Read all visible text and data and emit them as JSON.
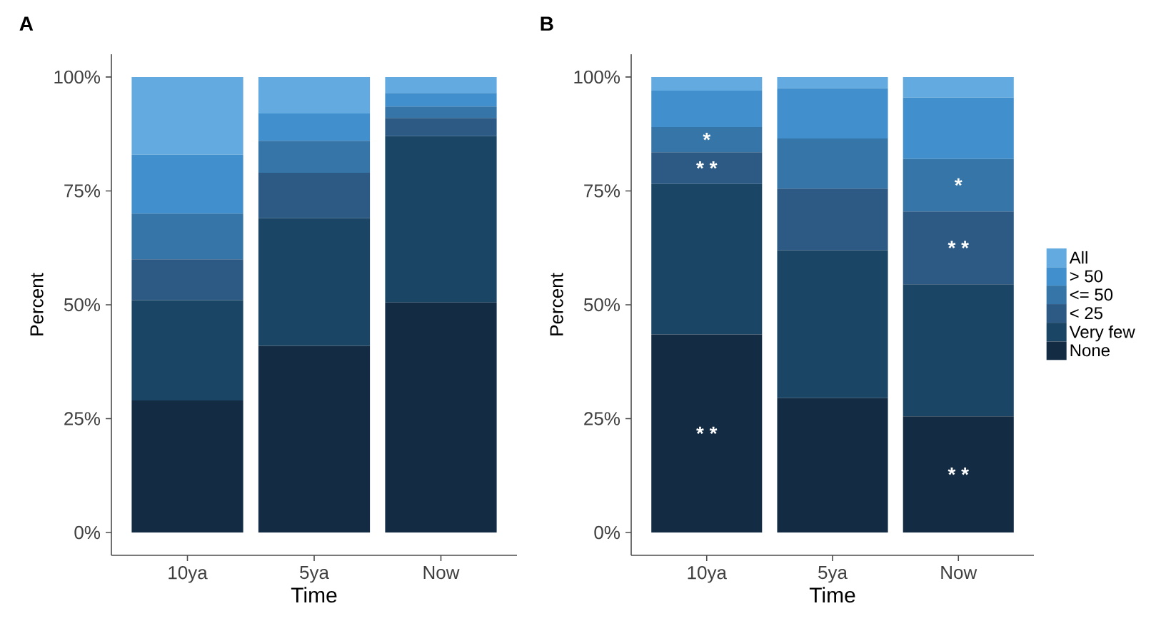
{
  "chart_data": [
    {
      "type": "bar",
      "title": "A",
      "xlabel": "Time",
      "ylabel": "Percent",
      "stacked": true,
      "categories": [
        "10ya",
        "5ya",
        "Now"
      ],
      "ylim": [
        -5,
        105
      ],
      "yticks": [
        {
          "value": 0,
          "label": "0%"
        },
        {
          "value": 25,
          "label": "25%"
        },
        {
          "value": 50,
          "label": "50%"
        },
        {
          "value": 75,
          "label": "75%"
        },
        {
          "value": 100,
          "label": "100%"
        }
      ],
      "grid": false,
      "legend": false,
      "series": [
        {
          "color": "#132b43",
          "values": [
            29,
            41,
            50.5
          ]
        },
        {
          "color": "#1b4565",
          "values": [
            22,
            28,
            36.5
          ]
        },
        {
          "color": "#2d5a85",
          "values": [
            9,
            10,
            4
          ]
        },
        {
          "color": "#3575a8",
          "values": [
            10,
            7,
            2.5
          ]
        },
        {
          "color": "#4190cd",
          "values": [
            13,
            6,
            3
          ]
        },
        {
          "color": "#62aadf",
          "values": [
            17,
            8,
            3.5
          ]
        }
      ]
    },
    {
      "type": "bar",
      "title": "B",
      "xlabel": "Time",
      "ylabel": "Percent",
      "stacked": true,
      "categories": [
        "10ya",
        "5ya",
        "Now"
      ],
      "ylim": [
        -5,
        105
      ],
      "yticks": [
        {
          "value": 0,
          "label": "0%"
        },
        {
          "value": 25,
          "label": "25%"
        },
        {
          "value": 50,
          "label": "50%"
        },
        {
          "value": 75,
          "label": "75%"
        },
        {
          "value": 100,
          "label": "100%"
        }
      ],
      "grid": false,
      "legend": "right",
      "series": [
        {
          "name": "None",
          "color": "#132b43",
          "values": [
            43.5,
            29.5,
            25.5
          ]
        },
        {
          "name": "Very few",
          "color": "#1b4565",
          "values": [
            33,
            32.5,
            29
          ]
        },
        {
          "name": "< 25",
          "color": "#2d5a85",
          "values": [
            7,
            13.5,
            16
          ]
        },
        {
          "name": "<= 50",
          "color": "#3575a8",
          "values": [
            5.5,
            11,
            11.5
          ]
        },
        {
          "name": "> 50",
          "color": "#4190cd",
          "values": [
            8,
            11,
            13.5
          ]
        },
        {
          "name": "All",
          "color": "#62aadf",
          "values": [
            3,
            2.5,
            4.5
          ]
        }
      ],
      "annotations": [
        "*",
        "* *",
        "* *",
        "*",
        "* *",
        "* *"
      ]
    }
  ]
}
